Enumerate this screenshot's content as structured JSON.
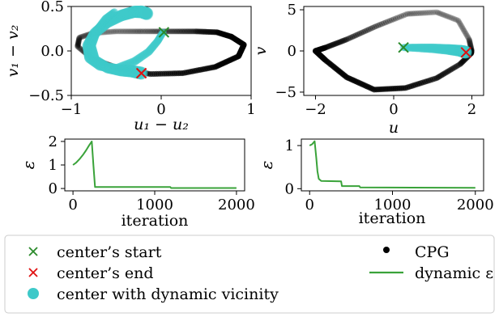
{
  "chart_data": [
    {
      "type": "scatter",
      "panel": "top-left",
      "xlabel": "u₁ − u₂",
      "ylabel": "v₁ − v₂",
      "xlim": [
        -1.0,
        1.0
      ],
      "ylim": [
        -0.5,
        0.5
      ],
      "xticks": [
        -1,
        0,
        1
      ],
      "xtick_labels": [
        "−1",
        "0",
        "1"
      ],
      "yticks": [
        -0.5,
        0.0,
        0.5
      ],
      "ytick_labels": [
        "−0.5",
        "0.0",
        "0.5"
      ],
      "cpg_orbit": {
        "x": [
          0.78,
          0.92,
          0.86,
          0.6,
          0.24,
          -0.12,
          -0.46,
          -0.76,
          -0.93,
          -0.91,
          -0.76,
          -0.5,
          -0.22,
          0.08,
          0.38,
          0.62,
          0.78
        ],
        "y": [
          0.16,
          0.07,
          -0.06,
          -0.18,
          -0.25,
          -0.26,
          -0.2,
          -0.09,
          0.05,
          0.15,
          0.2,
          0.22,
          0.22,
          0.22,
          0.22,
          0.21,
          0.16
        ]
      },
      "center_trajectory": {
        "x": [
          0.02,
          -0.04,
          -0.14,
          -0.3,
          -0.5,
          -0.68,
          -0.8,
          -0.82,
          -0.74,
          -0.6,
          -0.44,
          -0.3,
          -0.22,
          -0.16
        ],
        "y": [
          0.21,
          0.11,
          -0.01,
          -0.12,
          -0.2,
          -0.17,
          -0.08,
          0.06,
          0.2,
          0.32,
          0.4,
          0.44,
          0.44,
          0.42
        ]
      },
      "center_trajectory_2": {
        "x": [
          -0.52,
          -0.62,
          -0.72,
          -0.78,
          -0.74,
          -0.6,
          -0.45,
          -0.32,
          -0.22
        ],
        "y": [
          0.44,
          0.36,
          0.22,
          0.06,
          -0.1,
          -0.19,
          -0.22,
          -0.23,
          -0.25
        ]
      },
      "start": {
        "x": 0.03,
        "y": 0.21
      },
      "end": {
        "x": -0.22,
        "y": -0.25
      }
    },
    {
      "type": "scatter",
      "panel": "top-right",
      "xlabel": "u",
      "ylabel": "v",
      "xlim": [
        -2.3,
        2.3
      ],
      "ylim": [
        -5.4,
        5.4
      ],
      "xticks": [
        -2,
        0,
        2
      ],
      "xtick_labels": [
        "−2",
        "0",
        "2"
      ],
      "yticks": [
        -5,
        0,
        5
      ],
      "ytick_labels": [
        "−5",
        "0",
        "5"
      ],
      "cpg_orbit": {
        "x": [
          -2.0,
          -1.75,
          -1.2,
          -0.5,
          0.3,
          1.1,
          1.7,
          1.98,
          1.99,
          1.93,
          1.65,
          1.1,
          0.35,
          -0.45,
          -1.2,
          -1.75,
          -2.0
        ],
        "y": [
          0.0,
          -1.1,
          -3.2,
          -4.7,
          -4.5,
          -3.3,
          -1.6,
          -0.3,
          0.1,
          1.4,
          3.7,
          4.7,
          4.5,
          3.0,
          1.4,
          0.4,
          0.0
        ]
      },
      "center_trajectory": {
        "x": [
          0.25,
          0.6,
          1.0,
          1.4,
          1.7,
          1.84
        ],
        "y": [
          0.42,
          0.38,
          0.32,
          0.18,
          0.02,
          -0.15
        ]
      },
      "start": {
        "x": 0.25,
        "y": 0.42
      },
      "end": {
        "x": 1.85,
        "y": -0.18
      }
    },
    {
      "type": "line",
      "panel": "bottom-left",
      "xlabel": "iteration",
      "ylabel": "ε",
      "xlim": [
        -100,
        2100
      ],
      "ylim": [
        -0.1,
        2.1
      ],
      "xticks": [
        0,
        1000,
        2000
      ],
      "xtick_labels": [
        "0",
        "1000",
        "2000"
      ],
      "yticks": [
        0,
        1,
        2
      ],
      "ytick_labels": [
        "0",
        "1",
        "2"
      ],
      "series": [
        {
          "name": "dynamic ε",
          "x": [
            0,
            40,
            80,
            120,
            160,
            200,
            230,
            250,
            270,
            1190,
            1200,
            2000
          ],
          "y": [
            1.0,
            1.1,
            1.25,
            1.42,
            1.62,
            1.85,
            2.0,
            1.0,
            0.06,
            0.06,
            0.02,
            0.02
          ]
        }
      ]
    },
    {
      "type": "line",
      "panel": "bottom-right",
      "xlabel": "iteration",
      "ylabel": "ε",
      "xlim": [
        -100,
        2100
      ],
      "ylim": [
        -0.05,
        1.15
      ],
      "xticks": [
        0,
        1000,
        2000
      ],
      "xtick_labels": [
        "0",
        "1000",
        "2000"
      ],
      "yticks": [
        0,
        1
      ],
      "ytick_labels": [
        "0",
        "1"
      ],
      "series": [
        {
          "name": "dynamic ε",
          "x": [
            0,
            30,
            60,
            80,
            95,
            110,
            140,
            380,
            390,
            600,
            610,
            2000
          ],
          "y": [
            1.0,
            1.03,
            1.1,
            0.72,
            0.4,
            0.23,
            0.18,
            0.17,
            0.06,
            0.06,
            0.03,
            0.02
          ]
        }
      ]
    }
  ],
  "legend": {
    "placement": "bottom",
    "items": [
      {
        "marker": "x",
        "color": "#2a8a2a",
        "label": "center’s start"
      },
      {
        "marker": "x",
        "color": "#e01010",
        "label": "center’s end"
      },
      {
        "marker": "dot",
        "color": "#3ec9c9",
        "label": "center with dynamic vicinity"
      },
      {
        "marker": "dot",
        "color": "#000000",
        "label": "CPG"
      },
      {
        "marker": "line",
        "color": "#3aa33a",
        "label": "dynamic ε"
      }
    ]
  },
  "colors": {
    "cpg": "#000000",
    "center": "#3ec9c9",
    "start": "#2a8a2a",
    "end": "#e01010",
    "epsilon": "#3aa33a"
  }
}
